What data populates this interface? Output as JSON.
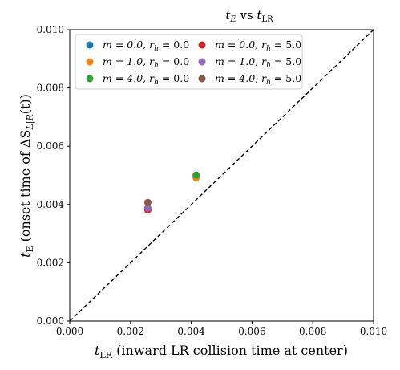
{
  "chart_data": {
    "type": "scatter",
    "title_main": "t",
    "title_sub": "E",
    "title_mid": " vs ",
    "title_tail_main": "t",
    "title_tail_sub": "LR",
    "xlabel_main": "t",
    "xlabel_sub": "LR",
    "xlabel_rest": " (inward LR collision time at center)",
    "ylabel_main": "t",
    "ylabel_sub": "E",
    "ylabel_rest_1": " (onset time of ΔS",
    "ylabel_rest_sub": "L|R",
    "ylabel_rest_2": "(t))",
    "xlim": [
      0,
      0.01
    ],
    "ylim": [
      0,
      0.01
    ],
    "x_ticks": [
      "0.000",
      "0.002",
      "0.004",
      "0.006",
      "0.008",
      "0.010"
    ],
    "y_ticks": [
      "0.000",
      "0.002",
      "0.004",
      "0.006",
      "0.008",
      "0.010"
    ],
    "x_tick_values": [
      0,
      0.002,
      0.004,
      0.006,
      0.008,
      0.01
    ],
    "y_tick_values": [
      0,
      0.002,
      0.004,
      0.006,
      0.008,
      0.01
    ],
    "reference_line": {
      "style": "dashed",
      "from": [
        0,
        0
      ],
      "to": [
        0.01,
        0.01
      ]
    },
    "legend_position": "upper-left",
    "series": [
      {
        "name": "m = 0.0, r_h = 0.0",
        "label": "m = 0.0, r",
        "sub": "h",
        "tail": " = 0.0",
        "color": "#1f77b4",
        "points": [
          [
            0.00257,
            0.00385
          ],
          [
            0.00416,
            0.00495
          ]
        ]
      },
      {
        "name": "m = 1.0, r_h = 0.0",
        "label": "m = 1.0, r",
        "sub": "h",
        "tail": " = 0.0",
        "color": "#ff7f0e",
        "points": [
          [
            0.00257,
            0.00387
          ],
          [
            0.00416,
            0.00492
          ]
        ]
      },
      {
        "name": "m = 4.0, r_h = 0.0",
        "label": "m = 4.0, r",
        "sub": "h",
        "tail": " = 0.0",
        "color": "#2ca02c",
        "points": [
          [
            0.00416,
            0.00501
          ]
        ]
      },
      {
        "name": "m = 0.0, r_h = 5.0",
        "label": "m = 0.0, r",
        "sub": "h",
        "tail": " = 5.0",
        "color": "#d62728",
        "points": [
          [
            0.00257,
            0.00381
          ]
        ]
      },
      {
        "name": "m = 1.0, r_h = 5.0",
        "label": "m = 1.0, r",
        "sub": "h",
        "tail": " = 5.0",
        "color": "#9467bd",
        "points": [
          [
            0.00257,
            0.00388
          ]
        ]
      },
      {
        "name": "m = 4.0, r_h = 5.0",
        "label": "m = 4.0, r",
        "sub": "h",
        "tail": " = 5.0",
        "color": "#8c564b",
        "points": [
          [
            0.00257,
            0.00407
          ]
        ]
      }
    ]
  }
}
